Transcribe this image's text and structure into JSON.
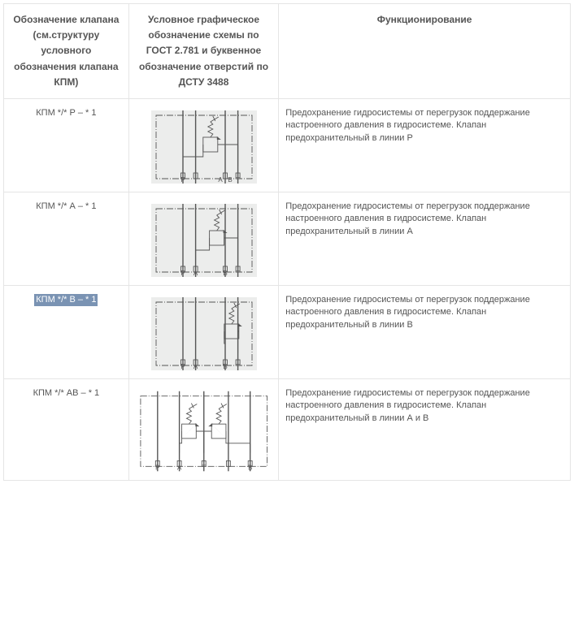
{
  "columns": {
    "c1": "Обозначение клапана (см.структуру условного обозначения клапана КПМ)",
    "c2": "Условное графическое обозначение схемы по ГОСТ 2.781 и буквенное обозначение отверстий по ДСТУ 3488",
    "c3": "Функционирование"
  },
  "rows": [
    {
      "code": "КПМ */* Р – * 1",
      "highlighted": false,
      "diagram": "P",
      "bg": true,
      "desc": "Предохранение гидросистемы от перегрузок поддержание настроенного давления в гидросистеме. Клапан предохранительный в линии Р"
    },
    {
      "code": "КПМ */* А – * 1",
      "highlighted": false,
      "diagram": "A",
      "bg": true,
      "desc": "Предохранение гидросистемы от перегрузок поддержание настроенного давления в гидросистеме. Клапан предохранительный в линии А"
    },
    {
      "code": "КПМ */* В – * 1",
      "highlighted": true,
      "diagram": "B",
      "bg": true,
      "desc": "Предохранение гидросистемы от перегрузок поддержание настроенного давления в гидросистеме. Клапан предохранительный в линии В"
    },
    {
      "code": "КПМ */* АВ – * 1",
      "highlighted": false,
      "diagram": "AB",
      "bg": false,
      "desc": "Предохранение гидросистемы от перегрузок поддержание настроенного давления в гидросистеме. Клапан предохранительный в линии А и В"
    }
  ],
  "style": {
    "diagram_bg": "#ecedec",
    "diagram_stroke": "#555555",
    "text_color": "#555555",
    "border_color": "#e5e5e5",
    "highlight_bg": "#7a93b3",
    "highlight_fg": "#ffffff"
  }
}
